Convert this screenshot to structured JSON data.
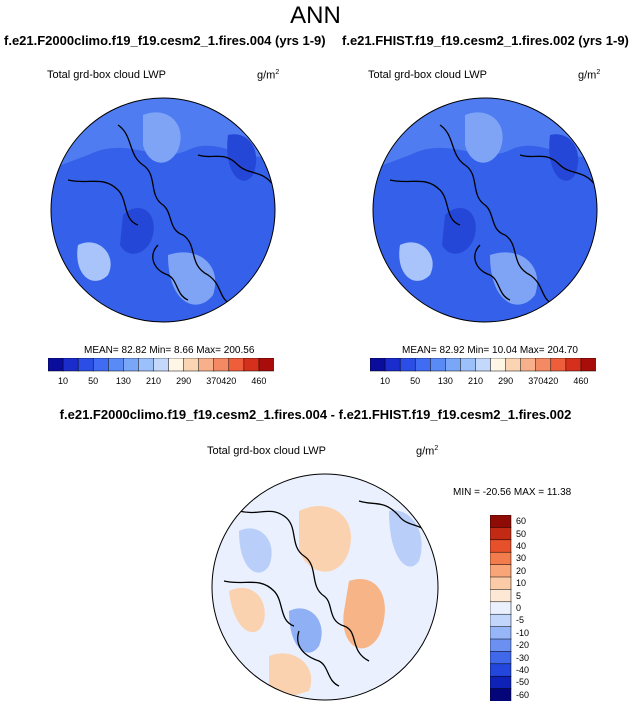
{
  "figure": {
    "title": "ANN"
  },
  "panels": [
    {
      "title": "f.e21.F2000climo.f19_f19.cesm2_1.fires.004 (yrs 1-9)",
      "variable": "Total grd-box cloud LWP",
      "units": "g/m",
      "units_sup": "2",
      "stats": "MEAN= 82.82  Min=  8.66  Max= 200.56"
    },
    {
      "title": "f.e21.FHIST.f19_f19.cesm2_1.fires.002 (yrs 1-9)",
      "variable": "Total grd-box cloud LWP",
      "units": "g/m",
      "units_sup": "2",
      "stats": "MEAN=  82.92  Min= 10.04  Max= 204.70"
    },
    {
      "title": "f.e21.F2000climo.f19_f19.cesm2_1.fires.004 - f.e21.FHIST.f19_f19.cesm2_1.fires.002",
      "variable": "Total grd-box cloud LWP",
      "units": "g/m",
      "units_sup": "2",
      "stats": "MIN = -20.56 MAX =  11.38"
    }
  ],
  "colorbar_abs": {
    "colors": [
      "#0a0c9c",
      "#1a2ccc",
      "#2a4ee6",
      "#3f6cf2",
      "#5a8af6",
      "#7aa6f8",
      "#9cc0fa",
      "#c4d8fc",
      "#fff6e6",
      "#fbd4b4",
      "#f8b08c",
      "#f48a64",
      "#ee5e3a",
      "#d4301c",
      "#a80d0a"
    ],
    "labels": [
      "10",
      "50",
      "130",
      "210",
      "290",
      "370",
      "420",
      "460"
    ]
  },
  "colorbar_diff": {
    "colors": [
      "#05057a",
      "#0e22b8",
      "#2346dc",
      "#4068ea",
      "#6c90f2",
      "#97b6f8",
      "#c2d6fb",
      "#eaf0fd",
      "#fde8d6",
      "#fbcaa6",
      "#f8a678",
      "#f37c4c",
      "#e6502a",
      "#c22a14",
      "#8e0b06"
    ],
    "labels": [
      "60",
      "50",
      "40",
      "30",
      "20",
      "10",
      "5",
      "0",
      "-5",
      "-10",
      "-20",
      "-30",
      "-40",
      "-50",
      "-60"
    ]
  },
  "map_colors": {
    "deep": "#2547d8",
    "base": "#3460ea",
    "mid": "#4f7cf0",
    "light": "#7fa4f6",
    "pale": "#a9c4fa",
    "diff_bg": "#eaf0fd",
    "diff_blue": "#b9cffa",
    "diff_blue2": "#8fb0f4",
    "diff_orange": "#fbd2b0",
    "diff_orange2": "#f7b487"
  }
}
